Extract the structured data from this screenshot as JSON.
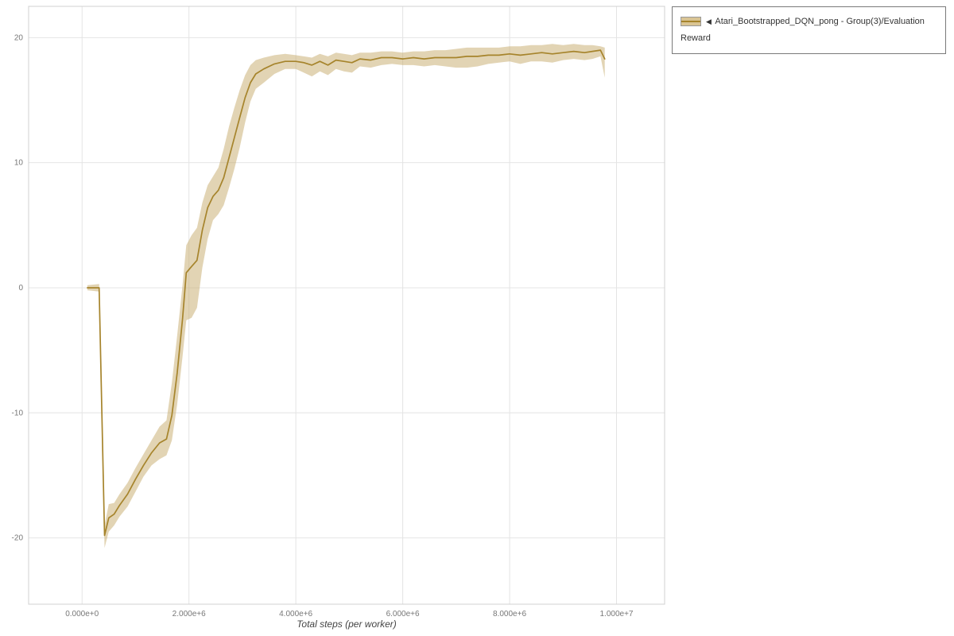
{
  "legend": {
    "collapse_icon": "◀",
    "entry_label": "Atari_Bootstrapped_DQN_pong - Group(3)/Evaluation Reward"
  },
  "colors": {
    "line": "#a6842c",
    "band": "rgba(198,170,106,0.5)",
    "grid": "#e4e4e4",
    "plot_border": "#d0d0d0",
    "tick_text": "#777777"
  },
  "chart_data": {
    "type": "line",
    "title": "",
    "xlabel": "Total steps (per worker)",
    "ylabel": "",
    "grid": true,
    "legend_position": "top-right",
    "xlim": [
      -1000000,
      10900000
    ],
    "ylim": [
      -25.3,
      22.5
    ],
    "x_ticks": {
      "values": [
        0,
        2000000,
        4000000,
        6000000,
        8000000,
        10000000
      ],
      "labels": [
        "0.000e+0",
        "2.000e+6",
        "4.000e+6",
        "6.000e+6",
        "8.000e+6",
        "1.000e+7"
      ]
    },
    "y_ticks": {
      "values": [
        -20,
        -10,
        0,
        10,
        20
      ],
      "labels": [
        "-20",
        "-10",
        "0",
        "10",
        "20"
      ]
    },
    "series": [
      {
        "name": "Atari_Bootstrapped_DQN_pong - Group(3)/Evaluation Reward",
        "color": "#a6842c",
        "band_color": "rgba(198,170,106,0.5)",
        "x": [
          100000,
          320000,
          420000,
          500000,
          600000,
          700000,
          850000,
          1000000,
          1150000,
          1300000,
          1450000,
          1580000,
          1680000,
          1780000,
          1880000,
          1950000,
          2050000,
          2150000,
          2250000,
          2350000,
          2450000,
          2550000,
          2650000,
          2750000,
          2850000,
          2950000,
          3050000,
          3150000,
          3250000,
          3400000,
          3600000,
          3800000,
          4000000,
          4150000,
          4300000,
          4450000,
          4600000,
          4750000,
          4900000,
          5050000,
          5200000,
          5400000,
          5600000,
          5800000,
          6000000,
          6200000,
          6400000,
          6600000,
          6800000,
          7000000,
          7200000,
          7400000,
          7600000,
          7800000,
          8000000,
          8200000,
          8400000,
          8600000,
          8800000,
          9000000,
          9200000,
          9400000,
          9550000,
          9700000,
          9780000
        ],
        "y": [
          0,
          0,
          -19.8,
          -18.4,
          -18.1,
          -17.4,
          -16.5,
          -15.3,
          -14.2,
          -13.2,
          -12.4,
          -12.1,
          -10.2,
          -6.8,
          -2.5,
          1.2,
          1.7,
          2.2,
          4.6,
          6.4,
          7.3,
          7.8,
          8.8,
          10.4,
          12.0,
          13.6,
          15.2,
          16.4,
          17.1,
          17.5,
          17.9,
          18.1,
          18.1,
          18.0,
          17.8,
          18.1,
          17.8,
          18.2,
          18.1,
          18.0,
          18.3,
          18.2,
          18.4,
          18.4,
          18.3,
          18.4,
          18.3,
          18.4,
          18.4,
          18.4,
          18.5,
          18.5,
          18.6,
          18.6,
          18.7,
          18.6,
          18.7,
          18.8,
          18.7,
          18.8,
          18.9,
          18.8,
          18.9,
          19.0,
          18.3
        ],
        "y_lower": [
          -0.2,
          -0.3,
          -20.8,
          -19.5,
          -19.0,
          -18.3,
          -17.5,
          -16.3,
          -15.1,
          -14.2,
          -13.7,
          -13.4,
          -12.2,
          -9.3,
          -5.5,
          -2.6,
          -2.4,
          -1.6,
          1.6,
          3.9,
          5.4,
          5.9,
          6.6,
          8.0,
          9.5,
          11.2,
          13.2,
          14.9,
          15.9,
          16.4,
          17.1,
          17.5,
          17.5,
          17.2,
          16.9,
          17.3,
          17.0,
          17.5,
          17.3,
          17.2,
          17.7,
          17.6,
          17.8,
          17.9,
          17.8,
          17.8,
          17.7,
          17.8,
          17.7,
          17.6,
          17.6,
          17.7,
          17.9,
          18.0,
          18.1,
          17.9,
          18.1,
          18.1,
          18.0,
          18.2,
          18.3,
          18.2,
          18.3,
          18.5,
          16.8
        ],
        "y_upper": [
          0.2,
          0.3,
          -19.0,
          -17.3,
          -17.2,
          -16.5,
          -15.6,
          -14.4,
          -13.3,
          -12.2,
          -11.1,
          -10.6,
          -7.6,
          -3.8,
          0.2,
          3.4,
          4.2,
          4.8,
          6.8,
          8.2,
          8.9,
          9.6,
          11.1,
          12.9,
          14.4,
          15.8,
          17.0,
          17.8,
          18.2,
          18.4,
          18.6,
          18.7,
          18.6,
          18.5,
          18.4,
          18.7,
          18.5,
          18.8,
          18.7,
          18.6,
          18.8,
          18.8,
          18.9,
          18.9,
          18.8,
          18.9,
          18.9,
          19.0,
          19.0,
          19.1,
          19.2,
          19.2,
          19.2,
          19.2,
          19.3,
          19.3,
          19.4,
          19.4,
          19.5,
          19.4,
          19.5,
          19.4,
          19.4,
          19.3,
          19.2
        ]
      }
    ]
  }
}
